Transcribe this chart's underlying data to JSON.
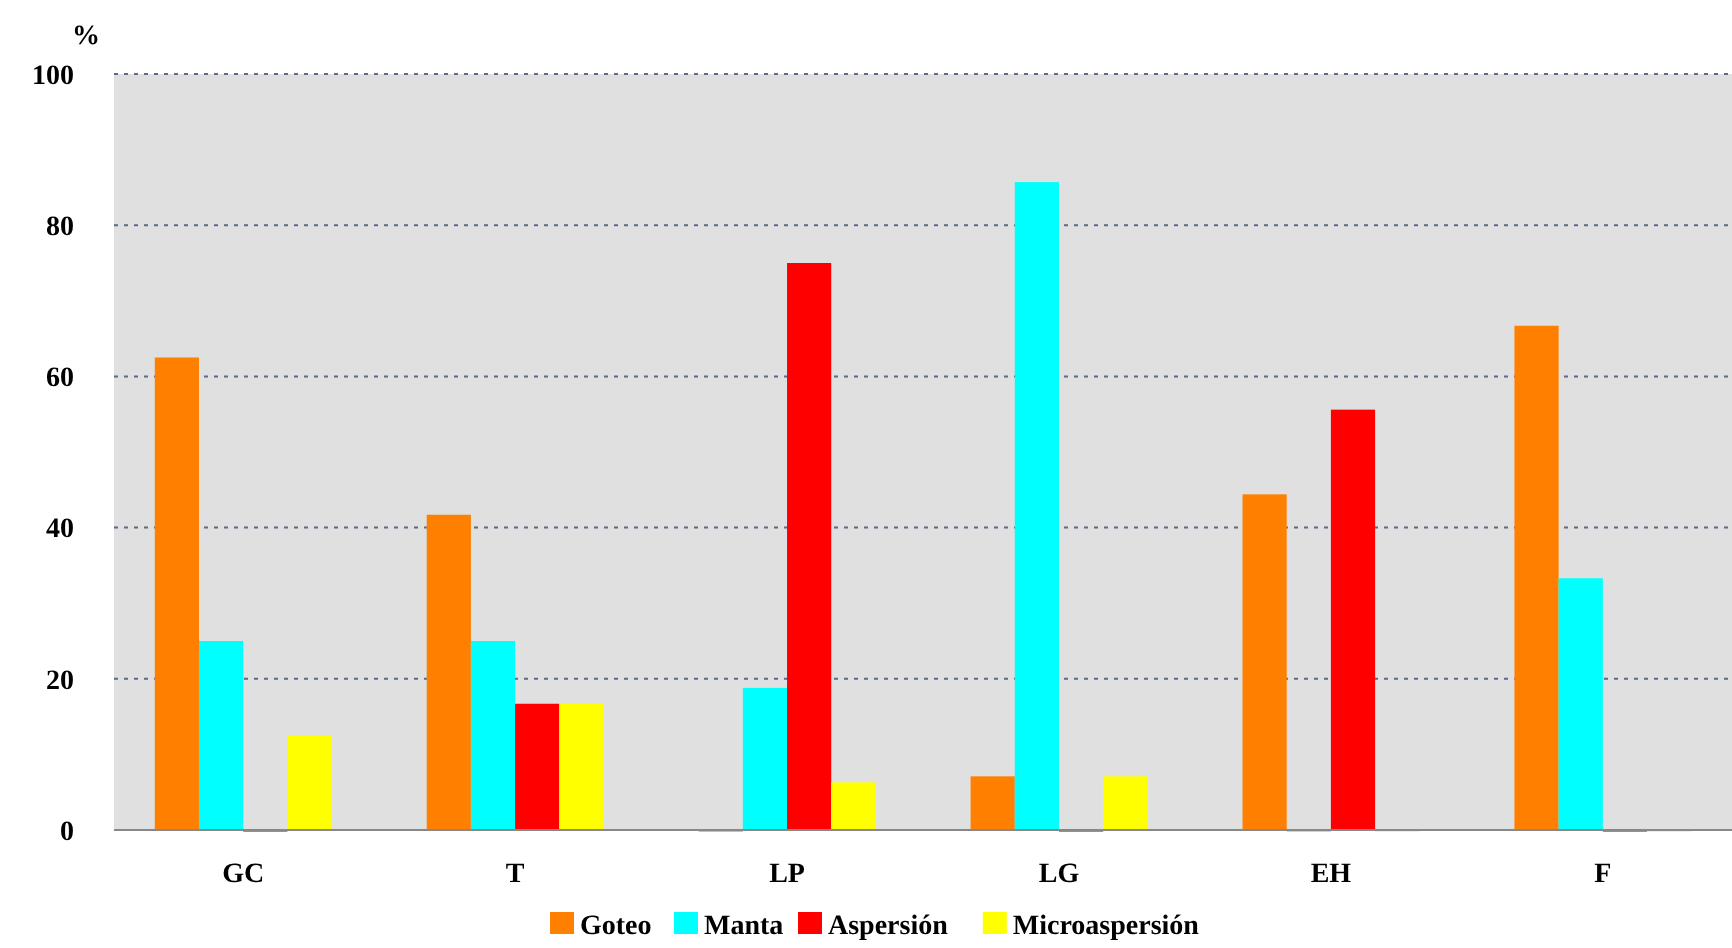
{
  "chart_data": {
    "type": "bar",
    "ylabel": "%",
    "categories": [
      "GC",
      "T",
      "LP",
      "LG",
      "EH",
      "F"
    ],
    "series": [
      {
        "name": "Goteo",
        "color": "#ff8000",
        "values": [
          62.5,
          41.7,
          0,
          7.1,
          44.4,
          66.7
        ]
      },
      {
        "name": "Manta",
        "color": "#00ffff",
        "values": [
          25,
          25,
          18.8,
          85.7,
          0,
          33.3
        ]
      },
      {
        "name": "Aspersión",
        "color": "#ff0000",
        "values": [
          0,
          16.7,
          75,
          0,
          55.6,
          0
        ]
      },
      {
        "name": "Microaspersión",
        "color": "#ffff00",
        "values": [
          12.5,
          16.7,
          6.3,
          7.1,
          0,
          0
        ]
      }
    ],
    "ylim": [
      0,
      100
    ],
    "yticks": [
      0,
      20,
      40,
      60,
      80,
      100
    ],
    "grid": "y",
    "line_style": "dotted",
    "legend": "bottom"
  }
}
